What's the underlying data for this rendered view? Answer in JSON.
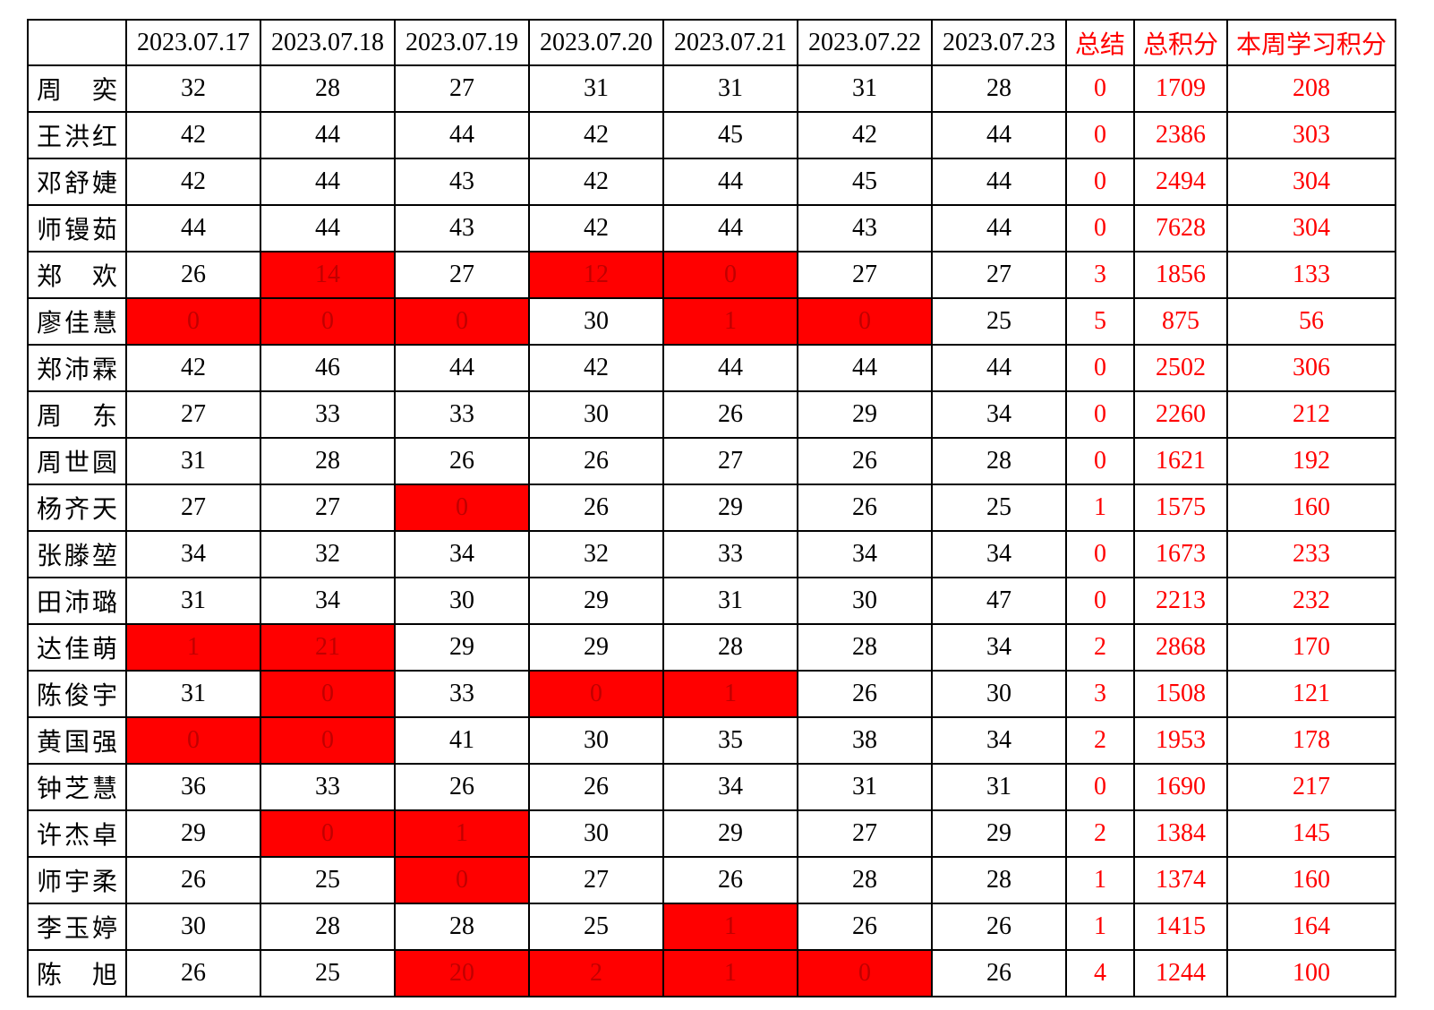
{
  "colors": {
    "accent_red": "#FF0000",
    "highlight_cell_background": "#FF0000",
    "highlight_cell_text": "#C00000",
    "grid_border": "#000000",
    "text": "#000000"
  },
  "chart_data": {
    "type": "table",
    "title": "",
    "columns": [
      "",
      "2023.07.17",
      "2023.07.18",
      "2023.07.19",
      "2023.07.20",
      "2023.07.21",
      "2023.07.22",
      "2023.07.23",
      "总结",
      "总积分",
      "本周学习积分"
    ],
    "summary_columns_color": "#FF0000",
    "rows": [
      {
        "name": "周奕",
        "values": [
          32,
          28,
          27,
          31,
          31,
          31,
          28
        ],
        "red_cols": [],
        "summary": 0,
        "total": 1709,
        "week": 208
      },
      {
        "name": "王洪红",
        "values": [
          42,
          44,
          44,
          42,
          45,
          42,
          44
        ],
        "red_cols": [],
        "summary": 0,
        "total": 2386,
        "week": 303
      },
      {
        "name": "邓舒婕",
        "values": [
          42,
          44,
          43,
          42,
          44,
          45,
          44
        ],
        "red_cols": [],
        "summary": 0,
        "total": 2494,
        "week": 304
      },
      {
        "name": "师镘茹",
        "values": [
          44,
          44,
          43,
          42,
          44,
          43,
          44
        ],
        "red_cols": [],
        "summary": 0,
        "total": 7628,
        "week": 304
      },
      {
        "name": "郑欢",
        "values": [
          26,
          14,
          27,
          12,
          0,
          27,
          27
        ],
        "red_cols": [
          1,
          3,
          4
        ],
        "summary": 3,
        "total": 1856,
        "week": 133
      },
      {
        "name": "廖佳慧",
        "values": [
          0,
          0,
          0,
          30,
          1,
          0,
          25
        ],
        "red_cols": [
          0,
          1,
          2,
          4,
          5
        ],
        "summary": 5,
        "total": 875,
        "week": 56
      },
      {
        "name": "郑沛霖",
        "values": [
          42,
          46,
          44,
          42,
          44,
          44,
          44
        ],
        "red_cols": [],
        "summary": 0,
        "total": 2502,
        "week": 306
      },
      {
        "name": "周东",
        "values": [
          27,
          33,
          33,
          30,
          26,
          29,
          34
        ],
        "red_cols": [],
        "summary": 0,
        "total": 2260,
        "week": 212
      },
      {
        "name": "周世圆",
        "values": [
          31,
          28,
          26,
          26,
          27,
          26,
          28
        ],
        "red_cols": [],
        "summary": 0,
        "total": 1621,
        "week": 192
      },
      {
        "name": "杨齐天",
        "values": [
          27,
          27,
          0,
          26,
          29,
          26,
          25
        ],
        "red_cols": [
          2
        ],
        "summary": 1,
        "total": 1575,
        "week": 160
      },
      {
        "name": "张滕堃",
        "values": [
          34,
          32,
          34,
          32,
          33,
          34,
          34
        ],
        "red_cols": [],
        "summary": 0,
        "total": 1673,
        "week": 233
      },
      {
        "name": "田沛璐",
        "values": [
          31,
          34,
          30,
          29,
          31,
          30,
          47
        ],
        "red_cols": [],
        "summary": 0,
        "total": 2213,
        "week": 232
      },
      {
        "name": "达佳萌",
        "values": [
          1,
          21,
          29,
          29,
          28,
          28,
          34
        ],
        "red_cols": [
          0,
          1
        ],
        "summary": 2,
        "total": 2868,
        "week": 170
      },
      {
        "name": "陈俊宇",
        "values": [
          31,
          0,
          33,
          0,
          1,
          26,
          30
        ],
        "red_cols": [
          1,
          3,
          4
        ],
        "summary": 3,
        "total": 1508,
        "week": 121
      },
      {
        "name": "黄国强",
        "values": [
          0,
          0,
          41,
          30,
          35,
          38,
          34
        ],
        "red_cols": [
          0,
          1
        ],
        "summary": 2,
        "total": 1953,
        "week": 178
      },
      {
        "name": "钟芝慧",
        "values": [
          36,
          33,
          26,
          26,
          34,
          31,
          31
        ],
        "red_cols": [],
        "summary": 0,
        "total": 1690,
        "week": 217
      },
      {
        "name": "许杰卓",
        "values": [
          29,
          0,
          1,
          30,
          29,
          27,
          29
        ],
        "red_cols": [
          1,
          2
        ],
        "summary": 2,
        "total": 1384,
        "week": 145
      },
      {
        "name": "师宇柔",
        "values": [
          26,
          25,
          0,
          27,
          26,
          28,
          28
        ],
        "red_cols": [
          2
        ],
        "summary": 1,
        "total": 1374,
        "week": 160
      },
      {
        "name": "李玉婷",
        "values": [
          30,
          28,
          28,
          25,
          1,
          26,
          26
        ],
        "red_cols": [
          4
        ],
        "summary": 1,
        "total": 1415,
        "week": 164
      },
      {
        "name": "陈旭",
        "values": [
          26,
          25,
          20,
          2,
          1,
          0,
          26
        ],
        "red_cols": [
          2,
          3,
          4,
          5
        ],
        "summary": 4,
        "total": 1244,
        "week": 100
      }
    ]
  }
}
